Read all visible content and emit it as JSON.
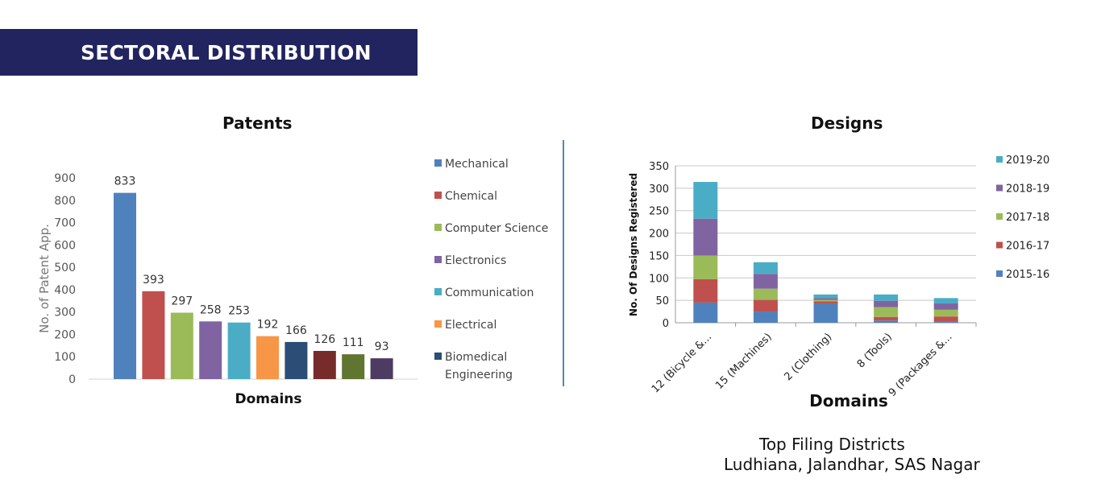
{
  "header": {
    "title": "SECTORAL DISTRIBUTION"
  },
  "patents": {
    "title": "Patents",
    "chart_data": {
      "type": "bar",
      "title": "Patents",
      "xlabel": "Domains",
      "ylabel": "No. of Patent App.",
      "ylim": [
        0,
        900
      ],
      "yticks": [
        "0",
        "100",
        "200",
        "300",
        "400",
        "500",
        "600",
        "700",
        "800",
        "900"
      ],
      "grid": false,
      "legend_position": "right",
      "series": [
        {
          "name": "Mechanical",
          "value": 833,
          "label": "833",
          "color": "#4f81bd"
        },
        {
          "name": "Chemical",
          "value": 393,
          "label": "393",
          "color": "#c0504d"
        },
        {
          "name": "Computer Science",
          "value": 297,
          "label": "297",
          "color": "#9bbb59"
        },
        {
          "name": "Electronics",
          "value": 258,
          "label": "258",
          "color": "#8064a2"
        },
        {
          "name": "Communication",
          "value": 253,
          "label": "253",
          "color": "#4bacc6"
        },
        {
          "name": "Electrical",
          "value": 192,
          "label": "192",
          "color": "#f79646"
        },
        {
          "name": "Biomedical Engineering",
          "value": 166,
          "label": "166",
          "color": "#2c4d75"
        },
        {
          "name": "",
          "value": 126,
          "label": "126",
          "color": "#772c2a"
        },
        {
          "name": "",
          "value": 111,
          "label": "111",
          "color": "#5f7530"
        },
        {
          "name": "",
          "value": 93,
          "label": "93",
          "color": "#4d3b62"
        }
      ],
      "legend": [
        {
          "lines": [
            "Mechanical"
          ],
          "color": "#4f81bd"
        },
        {
          "lines": [
            "Chemical"
          ],
          "color": "#c0504d"
        },
        {
          "lines": [
            "Computer Science"
          ],
          "color": "#9bbb59"
        },
        {
          "lines": [
            "Electronics"
          ],
          "color": "#8064a2"
        },
        {
          "lines": [
            "Communication"
          ],
          "color": "#4bacc6"
        },
        {
          "lines": [
            "Electrical"
          ],
          "color": "#f79646"
        },
        {
          "lines": [
            "Biomedical",
            "Engineering"
          ],
          "color": "#2c4d75"
        }
      ]
    }
  },
  "designs": {
    "title": "Designs",
    "chart_data": {
      "type": "bar",
      "stacked": true,
      "title": "Designs",
      "xlabel": "Domains",
      "ylabel": "No. Of Designs Registered",
      "ylim": [
        0,
        350
      ],
      "yticks": [
        "0",
        "50",
        "100",
        "150",
        "200",
        "250",
        "300",
        "350"
      ],
      "grid": true,
      "legend_position": "right",
      "categories": [
        "12 (Bicycle &...",
        "15 (Machines)",
        "2 (Clothing)",
        "8 (Tools)",
        "9 (Packages &..."
      ],
      "series": [
        {
          "name": "2015-16",
          "color": "#4f81bd",
          "values": [
            45,
            25,
            43,
            5,
            2
          ]
        },
        {
          "name": "2016-17",
          "color": "#c0504d",
          "values": [
            52,
            26,
            5,
            8,
            12
          ]
        },
        {
          "name": "2017-18",
          "color": "#9bbb59",
          "values": [
            53,
            25,
            3,
            22,
            15
          ]
        },
        {
          "name": "2018-19",
          "color": "#8064a2",
          "values": [
            82,
            33,
            4,
            14,
            14
          ]
        },
        {
          "name": "2019-20",
          "color": "#4bacc6",
          "values": [
            82,
            26,
            8,
            14,
            12
          ]
        }
      ]
    }
  },
  "footer": {
    "line1": "Top Filing Districts",
    "line2": "Ludhiana, Jalandhar, SAS Nagar"
  }
}
